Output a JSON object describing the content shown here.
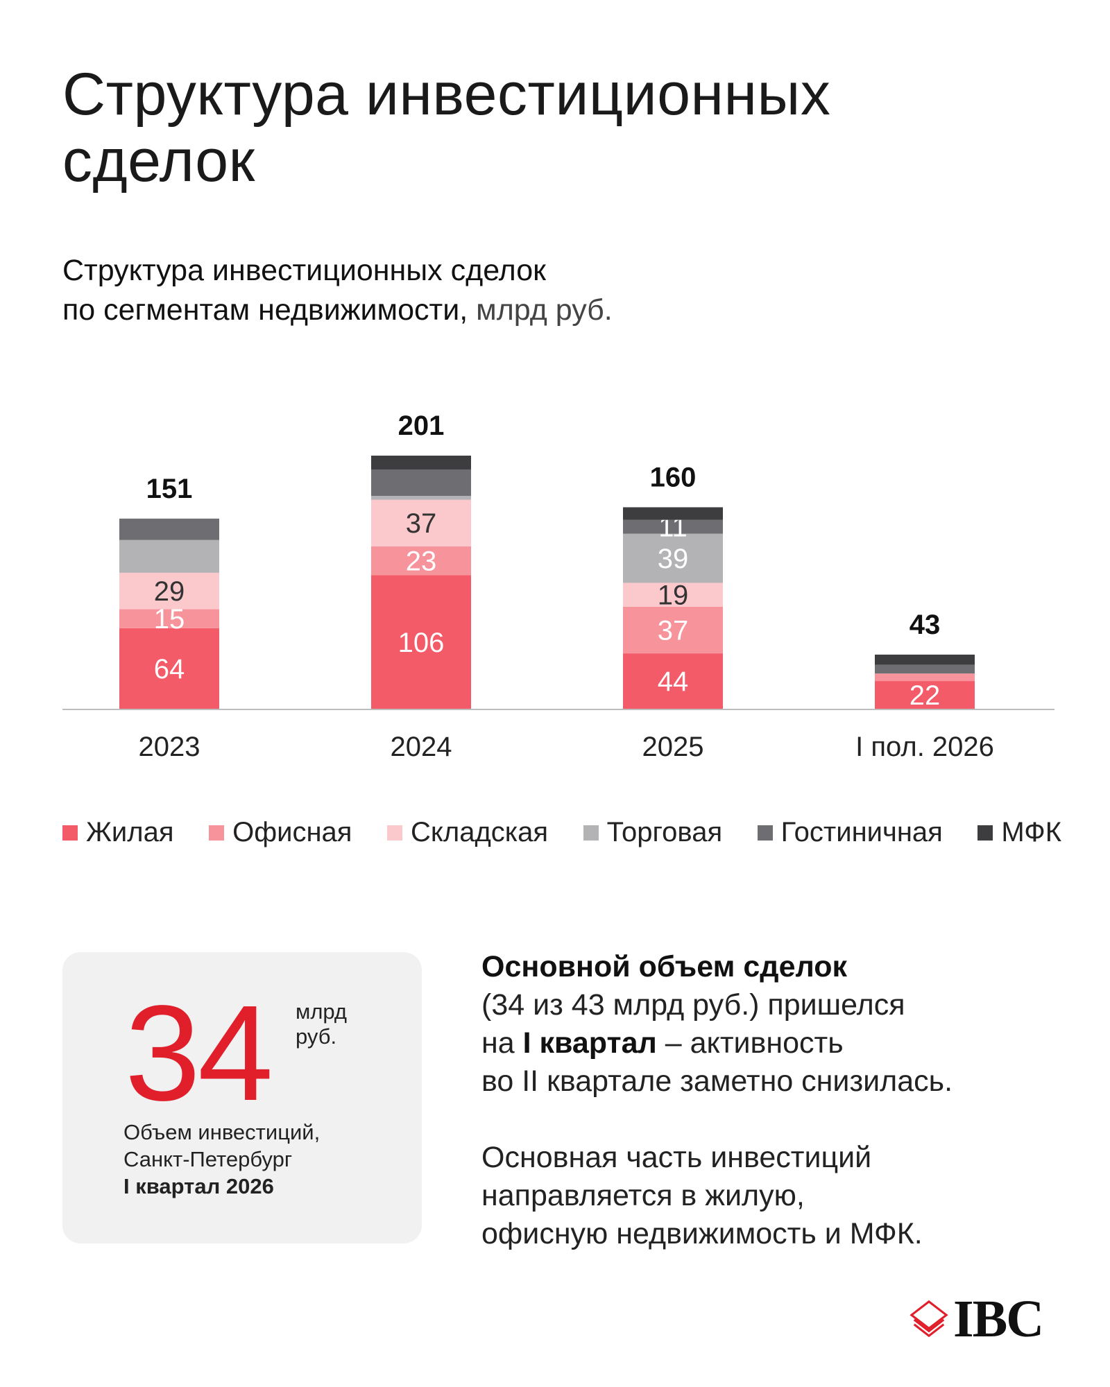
{
  "header": {
    "title_line1": "Структура инвестиционных",
    "title_line2": "сделок"
  },
  "chart_header": {
    "line1": "Структура инвестиционных сделок",
    "line2_strong": "по сегментам недвижимости,",
    "line2_unit": " млрд руб."
  },
  "chart_data": {
    "type": "bar",
    "stacked": true,
    "title": "Структура инвестиционных сделок по сегментам недвижимости, млрд руб.",
    "categories": [
      "2023",
      "2024",
      "2025",
      "I пол. 2026"
    ],
    "totals": [
      151,
      201,
      160,
      43
    ],
    "series": [
      {
        "name": "Жилая",
        "color": "#f45b69",
        "values": [
          64,
          106,
          44,
          22
        ],
        "labels": [
          "64",
          "106",
          "44",
          "22"
        ]
      },
      {
        "name": "Офисная",
        "color": "#f7939a",
        "values": [
          15,
          23,
          37,
          6
        ],
        "labels": [
          "15",
          "23",
          "37",
          ""
        ]
      },
      {
        "name": "Складская",
        "color": "#fbc8cc",
        "values": [
          29,
          37,
          19,
          0
        ],
        "labels": [
          "29",
          "37",
          "19",
          ""
        ]
      },
      {
        "name": "Торговая",
        "color": "#b3b3b5",
        "values": [
          26,
          3,
          39,
          0
        ],
        "labels": [
          "",
          "",
          "39",
          ""
        ]
      },
      {
        "name": "Гостиничная",
        "color": "#6e6e72",
        "values": [
          17,
          21,
          11,
          7
        ],
        "labels": [
          "",
          "",
          "11",
          ""
        ]
      },
      {
        "name": "МФК",
        "color": "#3d3d40",
        "values": [
          0,
          11,
          10,
          8
        ],
        "labels": [
          "",
          "",
          "",
          ""
        ]
      }
    ],
    "ylim": [
      0,
      201
    ],
    "grid": false,
    "legend_position": "bottom"
  },
  "stat": {
    "value": "34",
    "unit_line1": "млрд",
    "unit_line2": "руб.",
    "desc_line1": "Объем инвестиций,",
    "desc_line2": "Санкт-Петербург",
    "desc_line3": "I квартал 2026"
  },
  "summary": {
    "p1_bold": "Основной объем сделок",
    "p1_line2": "(34 из 43 млрд руб.) пришелся",
    "p1_line3_pre": "на ",
    "p1_line3_bold": "I квартал",
    "p1_line3_post": " – активность",
    "p1_line4": "во II квартале заметно снизилась.",
    "p2_line1": "Основная часть инвестиций",
    "p2_line2": "направляется в жилую,",
    "p2_line3": "офисную недвижимость и МФК."
  },
  "logo": {
    "text": "IBC",
    "icon": "ibc-layers-icon"
  }
}
